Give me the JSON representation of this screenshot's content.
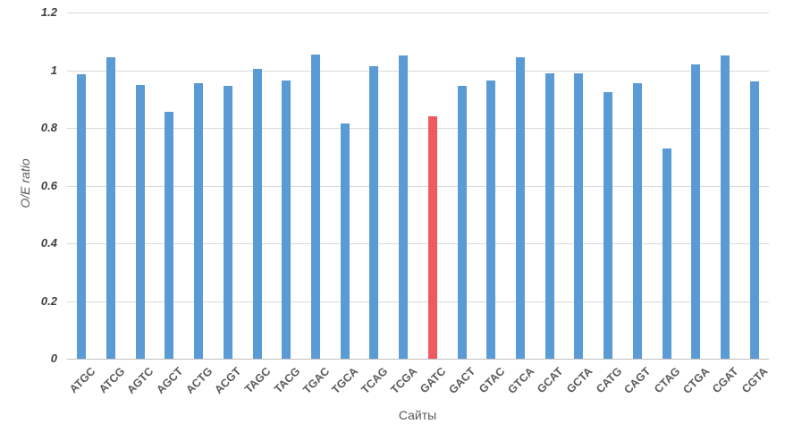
{
  "chart_data": {
    "type": "bar",
    "title": "",
    "xlabel": "Сайты",
    "ylabel": "O/E ratio",
    "categories": [
      "ATGC",
      "ATCG",
      "AGTC",
      "AGCT",
      "ACTG",
      "ACGT",
      "TAGC",
      "TACG",
      "TGAC",
      "TGCA",
      "TCAG",
      "TCGA",
      "GATC",
      "GACT",
      "GTAC",
      "GTCA",
      "GCAT",
      "GCTA",
      "CATG",
      "CAGT",
      "CTAG",
      "CTGA",
      "CGAT",
      "CGTA"
    ],
    "values": [
      0.985,
      1.045,
      0.95,
      0.855,
      0.955,
      0.945,
      1.005,
      0.965,
      1.055,
      0.815,
      1.015,
      1.05,
      0.84,
      0.945,
      0.965,
      1.045,
      0.99,
      0.99,
      0.925,
      0.955,
      0.73,
      1.02,
      1.05,
      0.96
    ],
    "highlighted_category": "GATC",
    "ylim": [
      0,
      1.2
    ],
    "ytick_labels": [
      "1.2",
      "1",
      "0.8",
      "0.6",
      "0.4",
      "0.2",
      "0"
    ],
    "grid": true,
    "legend": false,
    "colors": {
      "bar_default": "#5b9bd5",
      "bar_highlight": "#ee5a5f",
      "gridline": "#d9d9d9",
      "axis_line": "#bfbfbf",
      "tick_text": "#404040",
      "category_text": "#595959",
      "axis_title_text": "#595959"
    }
  }
}
